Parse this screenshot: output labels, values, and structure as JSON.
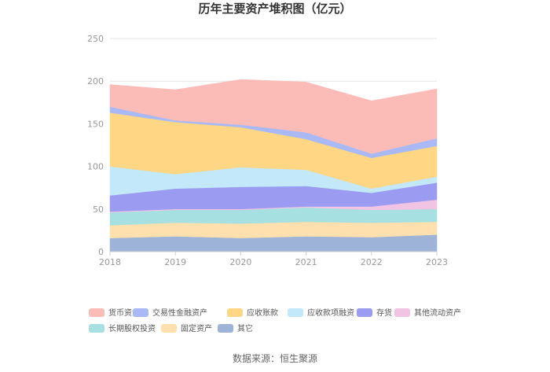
{
  "chart_data": {
    "type": "area",
    "stacked": true,
    "title": "历年主要资产堆积图（亿元）",
    "x": [
      "2018",
      "2019",
      "2020",
      "2021",
      "2022",
      "2023"
    ],
    "ylim": [
      0,
      250
    ],
    "yticks": [
      0,
      50,
      100,
      150,
      200,
      250
    ],
    "grid": true,
    "legend_position": "bottom",
    "series": [
      {
        "name": "其它",
        "color": "#9db3d8",
        "values": [
          16,
          18,
          16,
          18,
          17,
          20
        ]
      },
      {
        "name": "固定资产",
        "color": "#fde0ad",
        "values": [
          15,
          16,
          17,
          17,
          17,
          15
        ]
      },
      {
        "name": "长期股权投资",
        "color": "#a7e0e0",
        "values": [
          15,
          15,
          16,
          17,
          15,
          15
        ]
      },
      {
        "name": "其他流动资产",
        "color": "#f2c4e4",
        "values": [
          1,
          1,
          1,
          1,
          4,
          11
        ]
      },
      {
        "name": "存货",
        "color": "#9b9cf1",
        "values": [
          19,
          24,
          26,
          24,
          16,
          20
        ]
      },
      {
        "name": "应收款项融资",
        "color": "#c2e8fa",
        "values": [
          34,
          17,
          23,
          19,
          5,
          7
        ]
      },
      {
        "name": "应收账款",
        "color": "#fed684",
        "values": [
          63,
          61,
          47,
          36,
          36,
          36
        ]
      },
      {
        "name": "交易性金融资产",
        "color": "#a8b9f5",
        "values": [
          7,
          2,
          3,
          8,
          5,
          9
        ]
      },
      {
        "name": "货币资金",
        "color": "#fbbcb8",
        "values": [
          26,
          36,
          53,
          59,
          62,
          58
        ]
      }
    ],
    "legend_order": [
      "货币资金",
      "交易性金融资产",
      "应收账款",
      "应收款项融资",
      "存货",
      "其他流动资产",
      "长期股权投资",
      "固定资产",
      "其它"
    ],
    "source": "数据来源：恒生聚源"
  }
}
